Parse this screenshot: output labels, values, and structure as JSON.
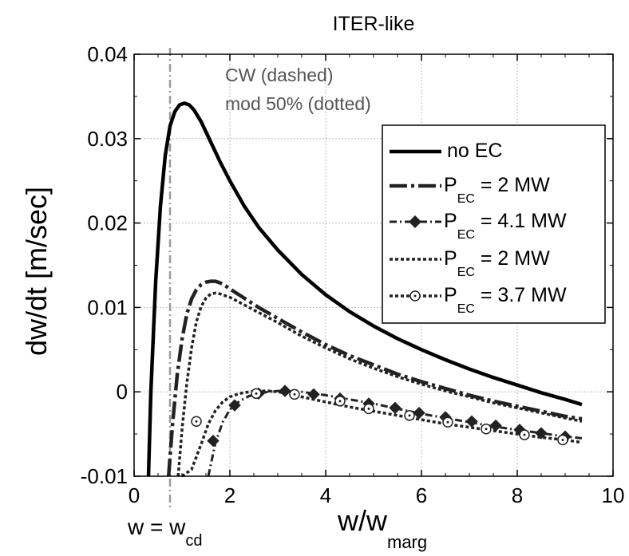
{
  "chart_data": {
    "type": "line",
    "title": "ITER-like",
    "xlabel": "w/w",
    "xlabel_sub": "marg",
    "ylabel": "dw/dt   [m/sec]",
    "xlim": [
      0,
      10
    ],
    "ylim": [
      -0.01,
      0.04
    ],
    "xticks": [
      "0",
      "2",
      "4",
      "6",
      "8",
      "10"
    ],
    "yticks": [
      "-0.01",
      "0",
      "0.01",
      "0.02",
      "0.03",
      "0.04"
    ],
    "grid": true,
    "legend_position": "top-right",
    "annotations": [
      "CW (dashed)",
      "mod 50%  (dotted)"
    ],
    "vline": {
      "x": 0.75,
      "label": "w = w",
      "label_sub": "cd"
    },
    "series": [
      {
        "name": "no EC",
        "style": "solid",
        "marker": "none",
        "x": [
          0.3,
          0.35,
          0.45,
          0.55,
          0.65,
          0.75,
          0.85,
          0.95,
          1.05,
          1.15,
          1.25,
          1.4,
          1.6,
          1.8,
          2.0,
          2.3,
          2.6,
          3.0,
          3.5,
          4.0,
          4.5,
          5.0,
          5.5,
          6.0,
          6.5,
          7.0,
          7.5,
          8.0,
          8.5,
          9.0,
          9.35
        ],
        "y": [
          -0.01,
          0.0,
          0.013,
          0.022,
          0.028,
          0.0315,
          0.0332,
          0.034,
          0.0342,
          0.034,
          0.0334,
          0.032,
          0.0296,
          0.0272,
          0.025,
          0.022,
          0.0195,
          0.0168,
          0.0139,
          0.0115,
          0.0095,
          0.0078,
          0.0063,
          0.005,
          0.0038,
          0.0027,
          0.0017,
          0.0008,
          -0.0001,
          -0.0009,
          -0.0015
        ]
      },
      {
        "name": "P_EC = 2 MW",
        "style": "dashed",
        "marker": "none",
        "x": [
          0.72,
          0.8,
          0.9,
          1.0,
          1.1,
          1.2,
          1.3,
          1.4,
          1.5,
          1.6,
          1.7,
          1.8,
          1.9,
          2.0,
          2.3,
          2.6,
          3.0,
          3.5,
          4.0,
          4.5,
          5.0,
          5.5,
          6.0,
          6.5,
          7.0,
          7.5,
          8.0,
          8.5,
          9.0,
          9.35
        ],
        "y": [
          -0.01,
          -0.004,
          0.002,
          0.0062,
          0.0092,
          0.011,
          0.0121,
          0.0127,
          0.013,
          0.0131,
          0.0131,
          0.0129,
          0.0126,
          0.0122,
          0.0111,
          0.01,
          0.0087,
          0.0071,
          0.0056,
          0.0043,
          0.0032,
          0.0021,
          0.0012,
          0.0004,
          -0.0004,
          -0.0011,
          -0.0017,
          -0.0023,
          -0.0029,
          -0.0032
        ]
      },
      {
        "name": "P_EC = 4.1 MW",
        "style": "dash-dot",
        "marker": "diamond",
        "x": [
          1.55,
          1.7,
          1.85,
          2.0,
          2.2,
          2.4,
          2.6,
          2.8,
          3.0,
          3.2,
          3.5,
          4.0,
          4.5,
          5.0,
          5.5,
          6.0,
          6.5,
          7.0,
          7.5,
          8.0,
          8.5,
          9.0,
          9.35
        ],
        "y": [
          -0.01,
          -0.006,
          -0.0036,
          -0.0021,
          -0.0011,
          -0.0005,
          -0.0002,
          0.0,
          0.0001,
          0.0001,
          0.0,
          -0.0004,
          -0.0009,
          -0.0014,
          -0.002,
          -0.0026,
          -0.0031,
          -0.0036,
          -0.0041,
          -0.0045,
          -0.0049,
          -0.0053,
          -0.0055
        ],
        "marker_x": [
          1.65,
          2.1,
          2.6,
          3.15,
          3.75,
          4.3,
          4.9,
          5.45,
          5.95,
          6.5,
          7.05,
          7.55,
          8.05,
          8.5,
          9.0
        ],
        "marker_y": [
          -0.0058,
          -0.0016,
          -0.0002,
          0.0001,
          -0.0003,
          -0.0008,
          -0.0014,
          -0.0019,
          -0.0025,
          -0.003,
          -0.0035,
          -0.004,
          -0.0045,
          -0.0049,
          -0.0053
        ]
      },
      {
        "name": "P_EC = 2 MW",
        "style": "dotted",
        "marker": "none",
        "x": [
          0.92,
          1.0,
          1.1,
          1.2,
          1.3,
          1.4,
          1.5,
          1.6,
          1.7,
          1.8,
          1.9,
          2.0,
          2.3,
          2.6,
          3.0,
          3.5,
          4.0,
          4.5,
          5.0,
          5.5,
          6.0,
          6.5,
          7.0,
          7.5,
          8.0,
          8.5,
          9.0,
          9.35
        ],
        "y": [
          -0.01,
          -0.0045,
          0.001,
          0.0052,
          0.0083,
          0.0101,
          0.0111,
          0.0116,
          0.0117,
          0.0116,
          0.0114,
          0.0112,
          0.0103,
          0.0094,
          0.0082,
          0.0066,
          0.0052,
          0.0039,
          0.0028,
          0.0018,
          0.0009,
          0.0001,
          -0.0006,
          -0.0013,
          -0.0019,
          -0.0025,
          -0.0031,
          -0.0035
        ]
      },
      {
        "name": "P_EC = 3.7 MW",
        "style": "dotted",
        "marker": "circle",
        "x": [
          1.0,
          1.2,
          1.4,
          1.55,
          1.7,
          1.85,
          2.0,
          2.2,
          2.4,
          2.6,
          2.8,
          3.0,
          3.2,
          3.5,
          4.0,
          4.5,
          5.0,
          5.5,
          6.0,
          6.5,
          7.0,
          7.5,
          8.0,
          8.5,
          9.0,
          9.35
        ],
        "y": [
          -0.01,
          -0.0092,
          -0.0062,
          -0.0038,
          -0.0022,
          -0.0012,
          -0.0006,
          -0.0002,
          0.0,
          0.0001,
          0.0001,
          0.0,
          -0.0002,
          -0.0006,
          -0.0012,
          -0.0018,
          -0.0023,
          -0.0028,
          -0.0033,
          -0.0038,
          -0.0042,
          -0.0046,
          -0.005,
          -0.0054,
          -0.0057,
          -0.006
        ],
        "marker_x": [
          1.3,
          2.55,
          3.35,
          4.3,
          4.9,
          5.75,
          6.55,
          7.35,
          8.15,
          8.95
        ],
        "marker_y": [
          -0.0035,
          -0.0002,
          -0.0003,
          -0.0011,
          -0.002,
          -0.0028,
          -0.0036,
          -0.0044,
          -0.0051,
          -0.0057
        ]
      }
    ]
  },
  "legend": {
    "entries": [
      {
        "text": "no EC"
      },
      {
        "text": "P",
        "sub": "EC",
        "rest": " = 2 MW"
      },
      {
        "text": "P",
        "sub": "EC",
        "rest": " = 4.1 MW"
      },
      {
        "text": "P",
        "sub": "EC",
        "rest": " = 2 MW"
      },
      {
        "text": "P",
        "sub": "EC",
        "rest": " = 3.7 MW"
      }
    ]
  }
}
